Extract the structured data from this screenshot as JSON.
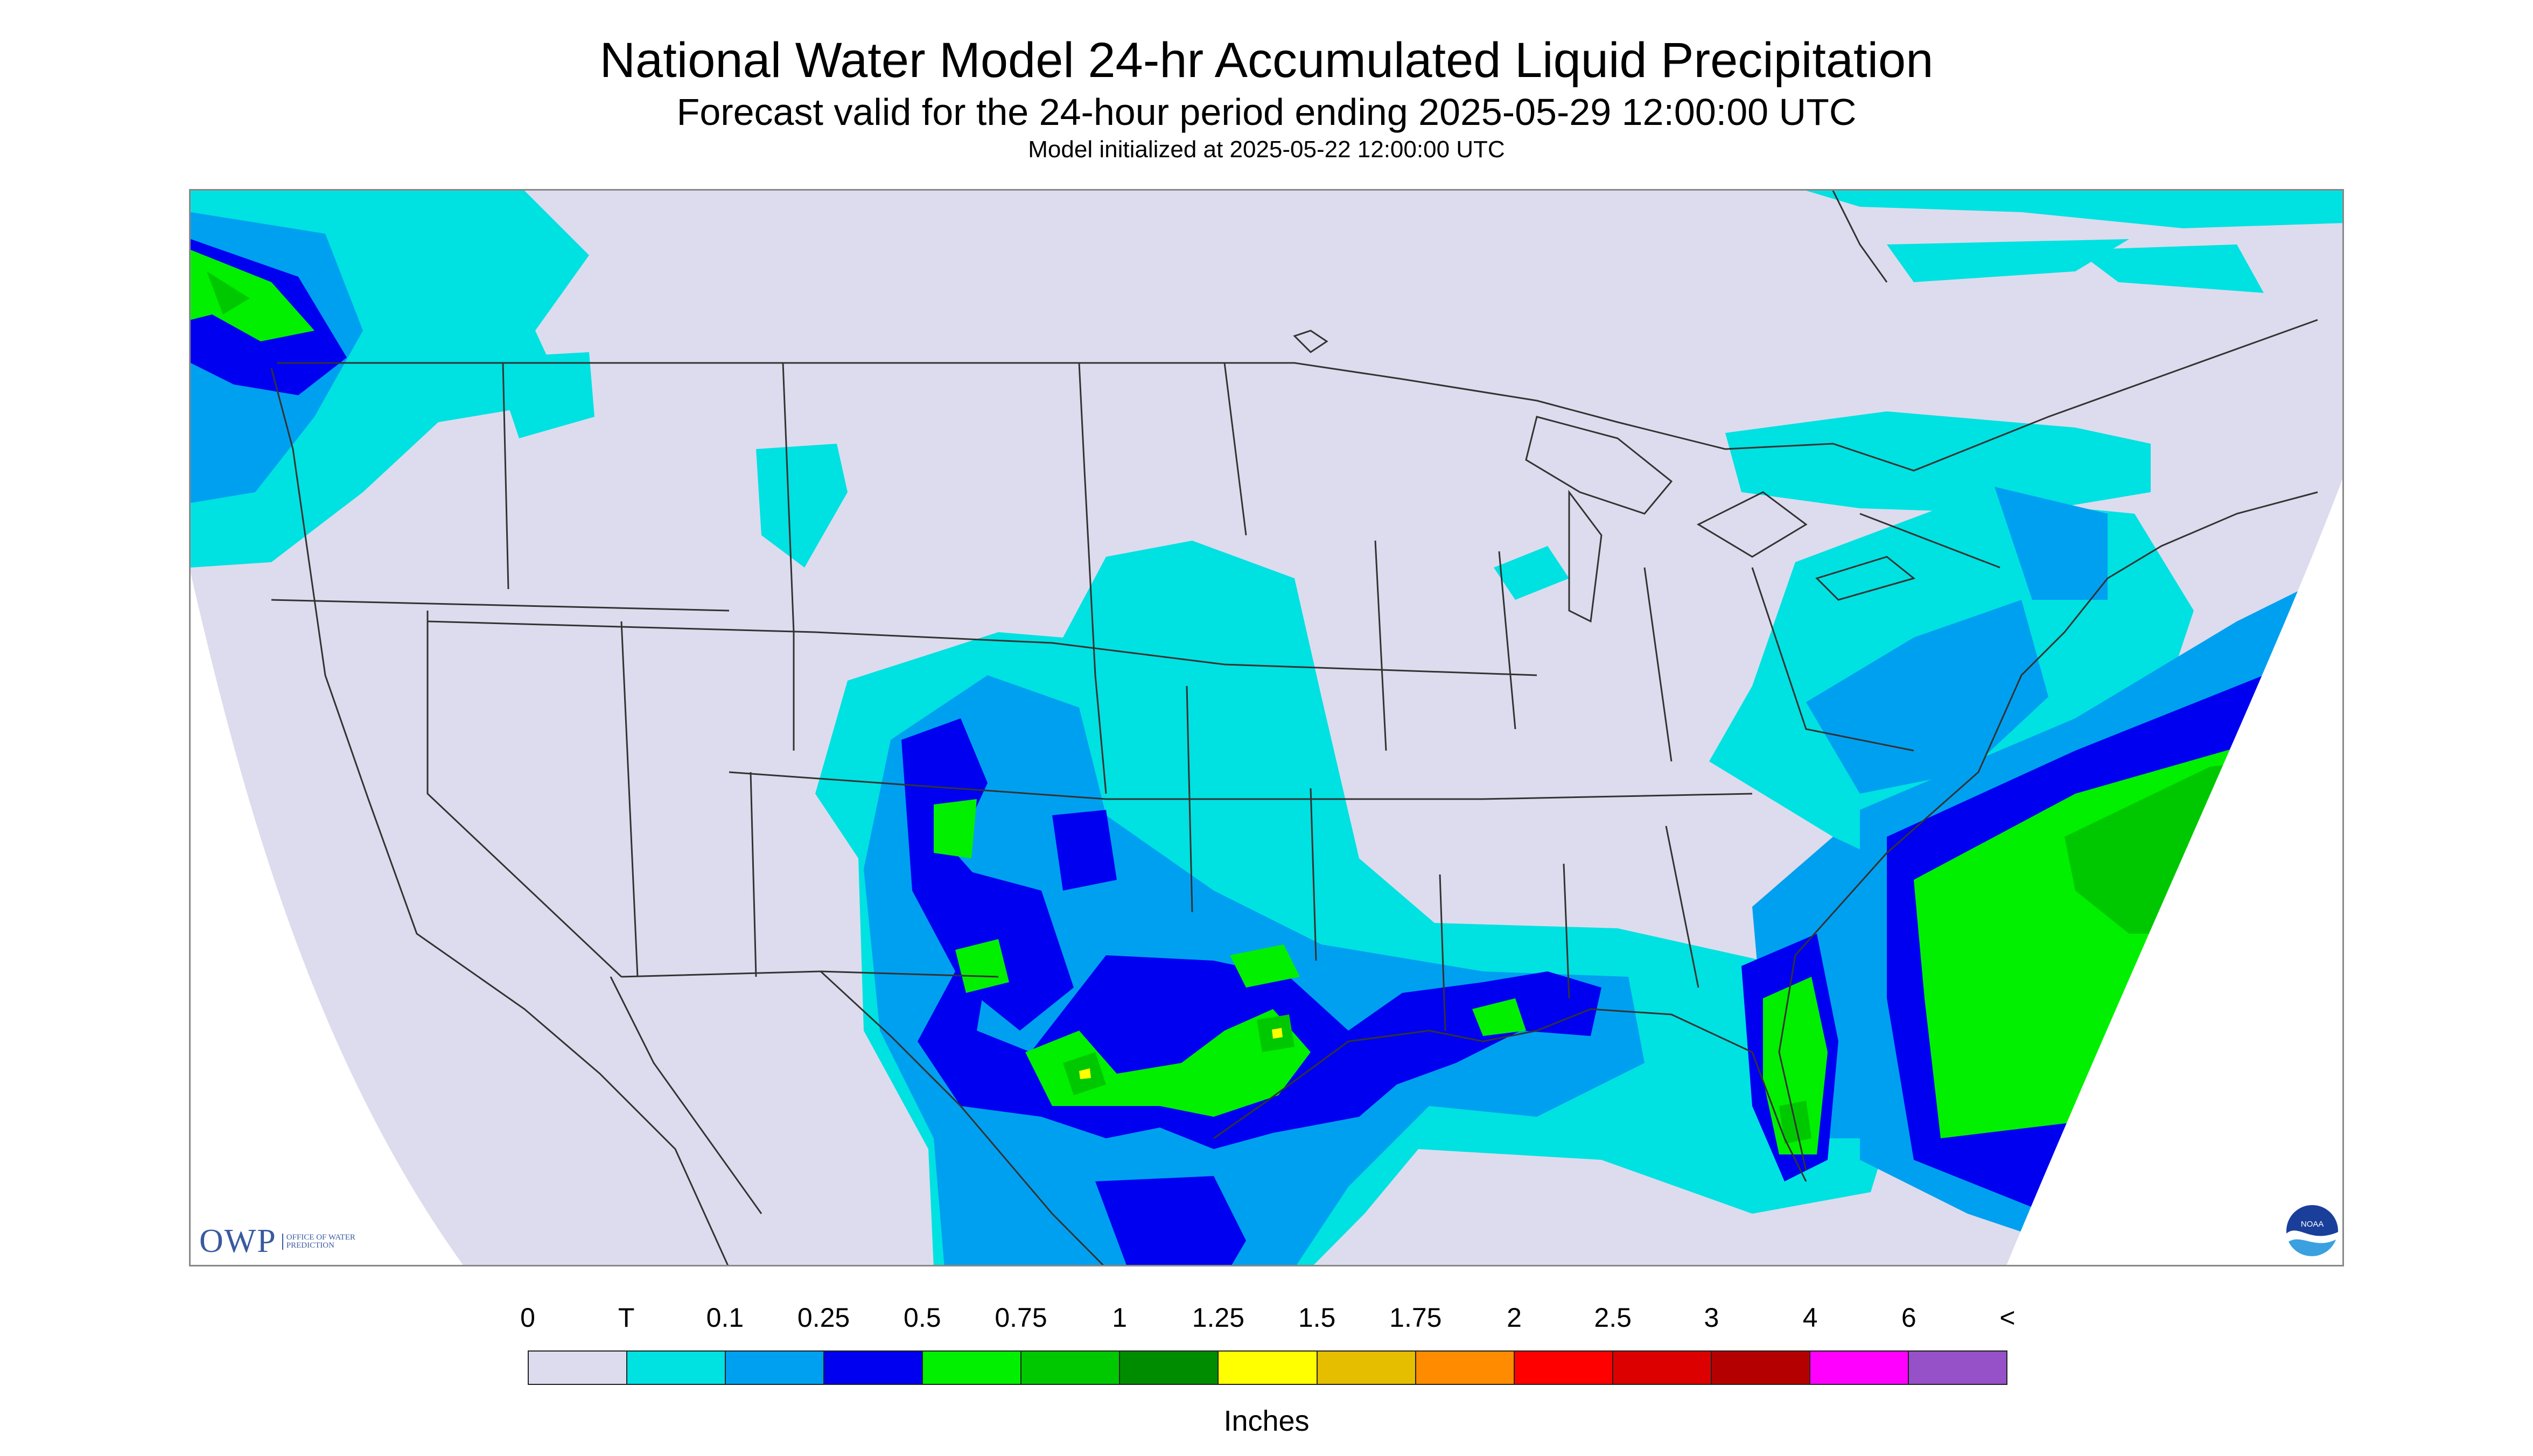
{
  "header": {
    "title": "National Water Model 24-hr Accumulated Liquid Precipitation",
    "subtitle": "Forecast valid for the 24-hour period ending 2025-05-29 12:00:00 UTC",
    "init": "Model initialized at 2025-05-22 12:00:00 UTC"
  },
  "logos": {
    "owp_text": "OWP",
    "owp_sub": "Office of Water Prediction",
    "noaa_text": "NOAA"
  },
  "legend": {
    "labels": [
      "0",
      "T",
      "0.1",
      "0.25",
      "0.5",
      "0.75",
      "1",
      "1.25",
      "1.5",
      "1.75",
      "2",
      "2.5",
      "3",
      "4",
      "6",
      "<"
    ],
    "colors": [
      "#dcdcee",
      "#00e1e1",
      "#00a0f0",
      "#0000f0",
      "#00f000",
      "#00c800",
      "#008c00",
      "#ffff00",
      "#e6be00",
      "#ff8c00",
      "#ff0000",
      "#dc0000",
      "#b40000",
      "#ff00ff",
      "#9650c8"
    ],
    "units": "Inches"
  },
  "map_colors": {
    "no_data": "#ffffff",
    "background": "#dcdcee",
    "boundaries": "#333333"
  }
}
